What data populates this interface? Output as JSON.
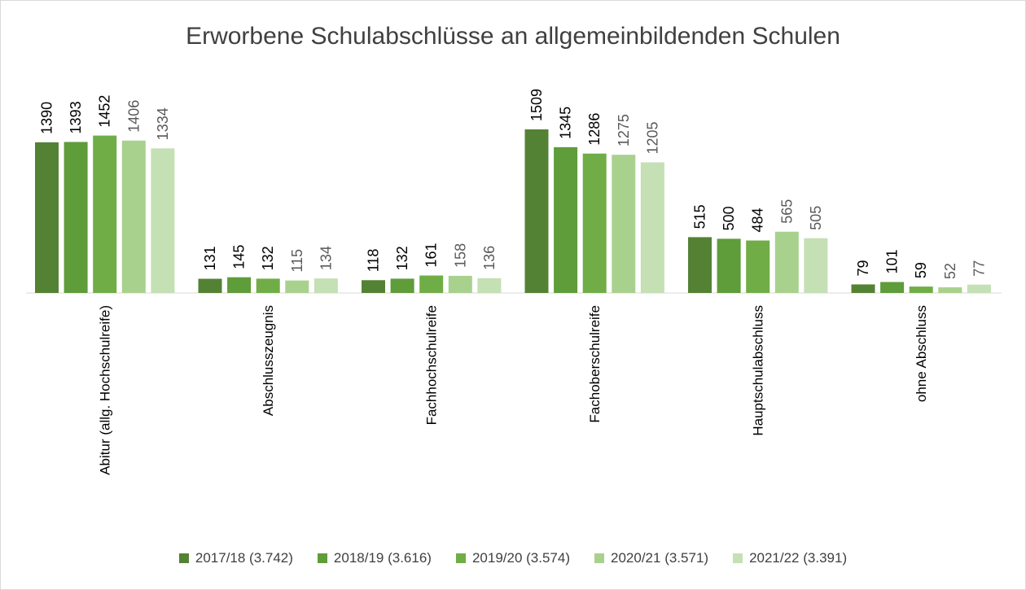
{
  "chart_data": {
    "type": "bar",
    "title": "Erworbene Schulabschlüsse an allgemeinbildenden Schulen",
    "categories": [
      "Abitur (allg. Hochschulreife)",
      "Abschlusszeugnis",
      "Fachhochschulreife",
      "Fachoberschulreife",
      "Hauptschulabschluss",
      "ohne Abschluss"
    ],
    "series": [
      {
        "name": "2017/18 (3.742)",
        "color": "#548235",
        "label_color": "#000000",
        "values": [
          1390,
          131,
          118,
          1509,
          515,
          79
        ]
      },
      {
        "name": "2018/19 (3.616)",
        "color": "#5f9c3a",
        "label_color": "#000000",
        "values": [
          1393,
          145,
          132,
          1345,
          500,
          101
        ]
      },
      {
        "name": "2019/20 (3.574)",
        "color": "#70ad47",
        "label_color": "#000000",
        "values": [
          1452,
          132,
          161,
          1286,
          484,
          59
        ]
      },
      {
        "name": "2020/21 (3.571)",
        "color": "#a9d18e",
        "label_color": "#595959",
        "values": [
          1406,
          115,
          158,
          1275,
          565,
          52
        ]
      },
      {
        "name": "2021/22 (3.391)",
        "color": "#c5e0b4",
        "label_color": "#595959",
        "values": [
          1334,
          134,
          136,
          1205,
          505,
          77
        ]
      }
    ],
    "ylim": [
      0,
      1509
    ],
    "grid": false,
    "legend_position": "bottom"
  }
}
